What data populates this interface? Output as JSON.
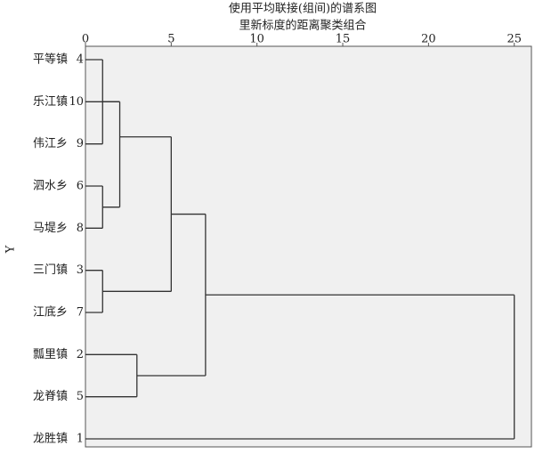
{
  "chart_data": {
    "type": "dendrogram",
    "title": "使用平均联接(组间)的谱系图",
    "subtitle": "里新标度的距离聚类组合",
    "y_label": "Y",
    "categories": [
      "平等镇",
      "乐江镇",
      "伟江乡",
      "泗水乡",
      "马堤乡",
      "三门镇",
      "江底乡",
      "瓢里镇",
      "龙脊镇",
      "龙胜镇"
    ],
    "cases": [
      4,
      10,
      9,
      6,
      8,
      3,
      7,
      2,
      5,
      1
    ],
    "merges": [
      {
        "children": [
          0,
          2
        ],
        "height": 1
      },
      {
        "children": [
          3,
          4
        ],
        "height": 1
      },
      {
        "children": [
          5,
          6
        ],
        "height": 1
      },
      {
        "children": [
          1,
          10,
          11
        ],
        "height": 2
      },
      {
        "children": [
          13,
          12
        ],
        "height": 5
      },
      {
        "children": [
          7,
          8
        ],
        "height": 3
      },
      {
        "children": [
          14,
          15
        ],
        "height": 7
      },
      {
        "children": [
          16,
          9
        ],
        "height": 25
      }
    ],
    "xlim": [
      0,
      26
    ],
    "xticks": [
      0,
      5,
      10,
      15,
      20,
      25
    ],
    "color": "#333333"
  }
}
